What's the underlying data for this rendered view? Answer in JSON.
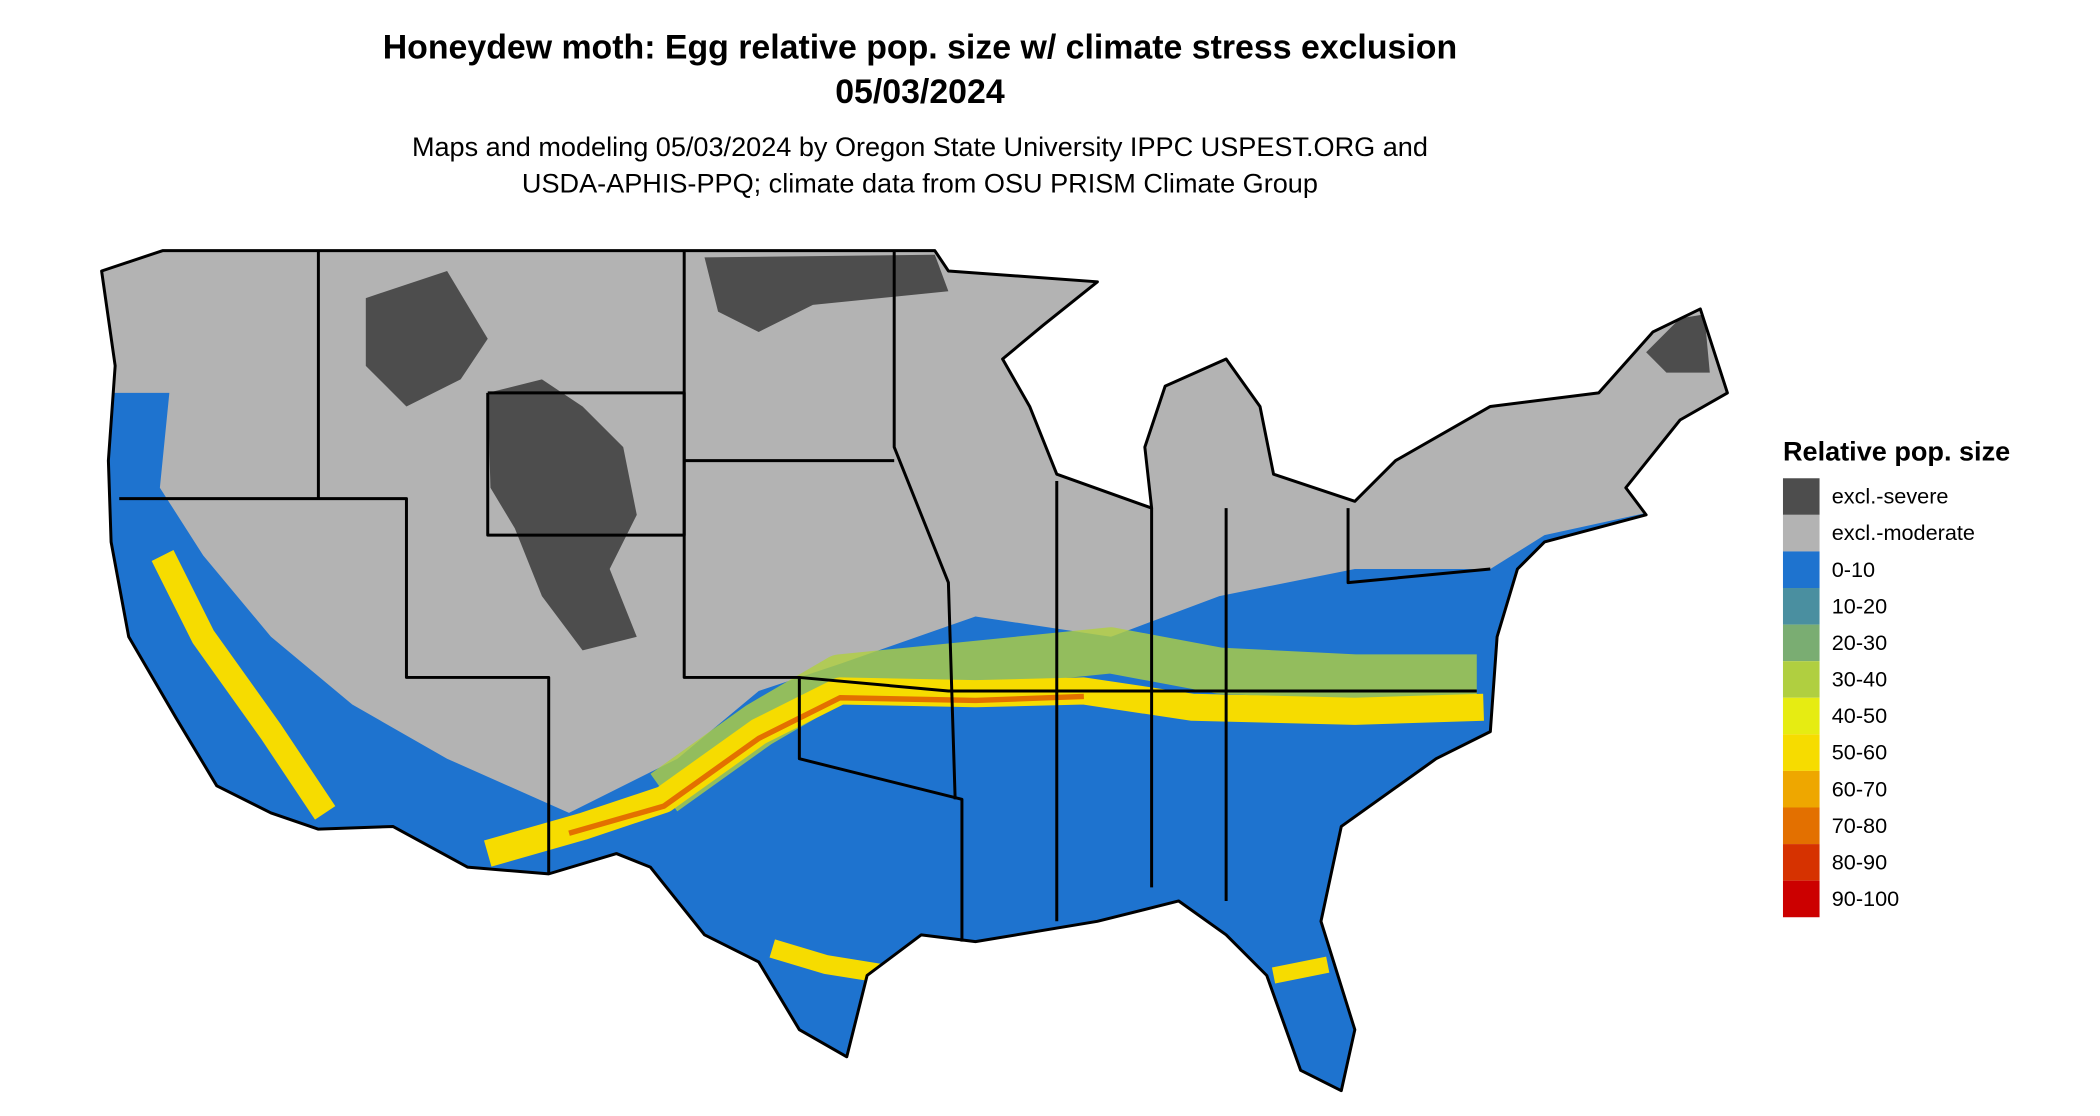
{
  "map": {
    "title": [
      "Honeydew moth: Egg relative pop. size w/ climate stress exclusion",
      "05/03/2024"
    ],
    "subtitle": [
      "Maps and modeling 05/03/2024 by Oregon State University IPPC USPEST.ORG and",
      "USDA-APHIS-PPQ; climate data from OSU PRISM Climate Group"
    ],
    "legend": {
      "title": "Relative pop. size",
      "items": [
        {
          "label": "excl.-severe",
          "color": "#4d4d4d"
        },
        {
          "label": "excl.-moderate",
          "color": "#b3b3b3"
        },
        {
          "label": "0-10",
          "color": "#1e73cf"
        },
        {
          "label": "10-20",
          "color": "#4a8fa0"
        },
        {
          "label": "20-30",
          "color": "#7aad72"
        },
        {
          "label": "30-40",
          "color": "#b0cf40"
        },
        {
          "label": "40-50",
          "color": "#e6ec12"
        },
        {
          "label": "50-60",
          "color": "#f6dc00"
        },
        {
          "label": "60-70",
          "color": "#eea700"
        },
        {
          "label": "70-80",
          "color": "#e37000"
        },
        {
          "label": "80-90",
          "color": "#d63200"
        },
        {
          "label": "90-100",
          "color": "#cc0000"
        }
      ]
    }
  }
}
